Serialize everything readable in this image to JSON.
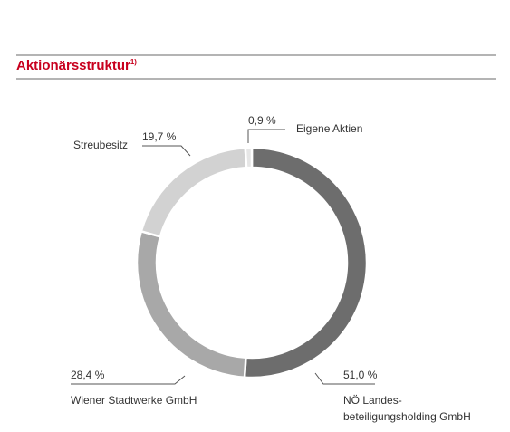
{
  "header": {
    "title": "Aktionärsstruktur",
    "footnote_marker": "1)"
  },
  "colors": {
    "title": "#c8001e",
    "rule": "#b4b4b4",
    "leader_line": "#555555"
  },
  "chart_data": {
    "type": "pie",
    "variant": "donut",
    "start_angle_deg": 0,
    "direction": "clockwise",
    "slices": [
      {
        "name": "NÖ Landes-\nbeteiligungsholding GmbH",
        "label_lines": [
          "NÖ Landes-",
          "beteiligungsholding GmbH"
        ],
        "value": 51.0,
        "value_label": "51,0 %",
        "color": "#6d6d6d"
      },
      {
        "name": "Wiener Stadtwerke GmbH",
        "label_lines": [
          "Wiener Stadtwerke GmbH"
        ],
        "value": 28.4,
        "value_label": "28,4 %",
        "color": "#a8a8a8"
      },
      {
        "name": "Streubesitz",
        "label_lines": [
          "Streubesitz"
        ],
        "value": 19.7,
        "value_label": "19,7 %",
        "color": "#d2d2d2"
      },
      {
        "name": "Eigene Aktien",
        "label_lines": [
          "Eigene Aktien"
        ],
        "value": 0.9,
        "value_label": "0,9 %",
        "color": "#e6e6e6"
      }
    ]
  }
}
